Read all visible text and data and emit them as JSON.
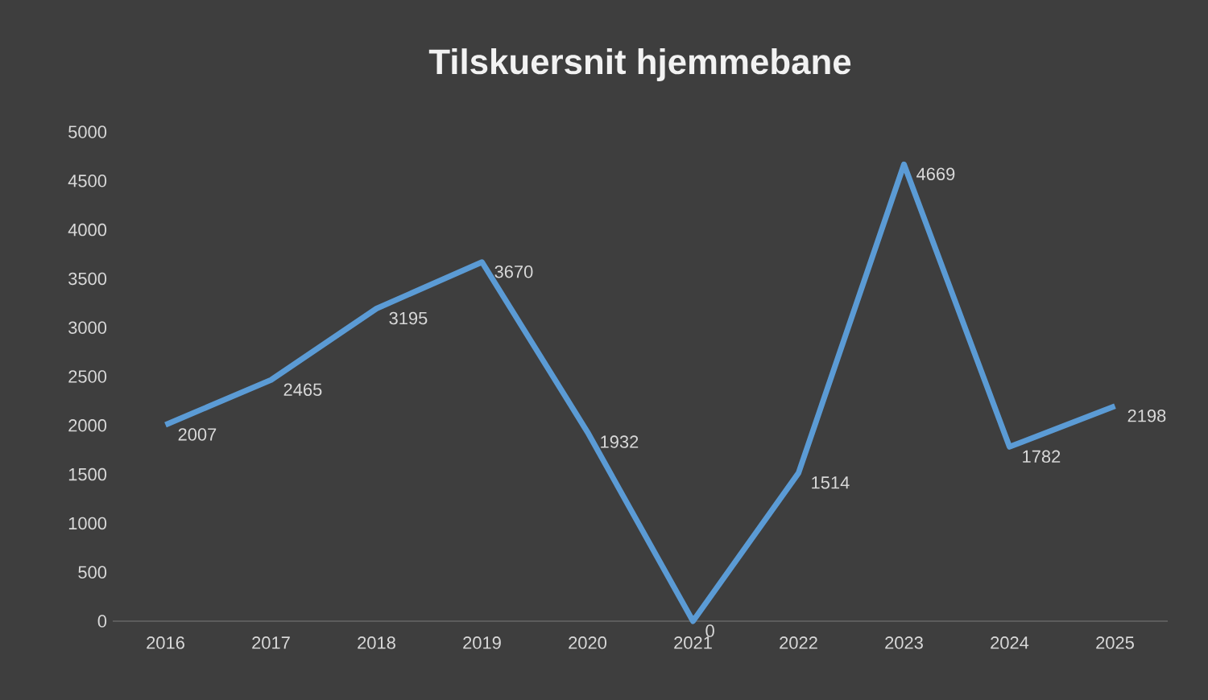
{
  "chart_data": {
    "type": "line",
    "title": "Tilskuersnit hjemmebane",
    "categories": [
      "2016",
      "2017",
      "2018",
      "2019",
      "2020",
      "2021",
      "2022",
      "2023",
      "2024",
      "2025"
    ],
    "values": [
      2007,
      2465,
      3195,
      3670,
      1932,
      0,
      1514,
      4669,
      1782,
      2198
    ],
    "color": "#5b9bd5",
    "ylim": [
      0,
      5000
    ],
    "yticks": [
      0,
      500,
      1000,
      1500,
      2000,
      2500,
      3000,
      3500,
      4000,
      4500,
      5000
    ],
    "grid": false,
    "marker": "none",
    "line_style": "solid",
    "data_labels": true
  }
}
